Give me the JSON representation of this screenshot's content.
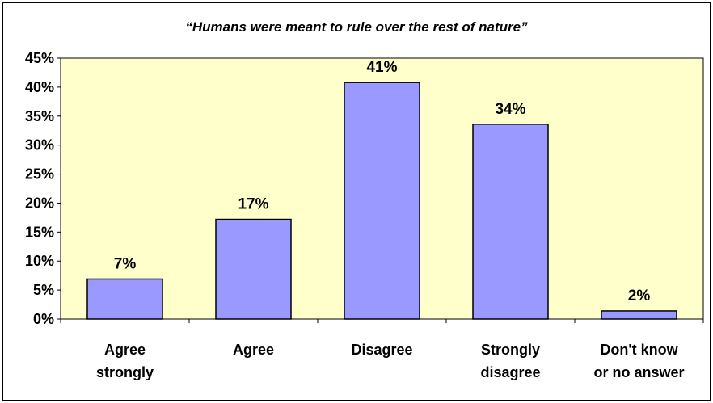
{
  "chart_data": {
    "type": "bar",
    "title": "“Humans were meant to rule over the rest of nature”",
    "categories": [
      [
        "Agree",
        "strongly"
      ],
      [
        "Agree"
      ],
      [
        "Disagree"
      ],
      [
        "Strongly",
        "disagree"
      ],
      [
        "Don't know",
        "or no answer"
      ]
    ],
    "values": [
      7,
      17,
      41,
      34,
      2
    ],
    "value_labels": [
      "7%",
      "17%",
      "41%",
      "34%",
      "2%"
    ],
    "values_precise": [
      6.9,
      17.2,
      40.8,
      33.6,
      1.4
    ],
    "ylim": [
      0,
      45
    ],
    "yticks": [
      "0%",
      "5%",
      "10%",
      "15%",
      "20%",
      "25%",
      "30%",
      "35%",
      "40%",
      "45%"
    ],
    "xlabel": "",
    "ylabel": "",
    "grid": false,
    "colors": {
      "plot_background": "#FFFFCC",
      "bar_fill": "#9999FF",
      "bar_stroke": "#000000"
    }
  }
}
